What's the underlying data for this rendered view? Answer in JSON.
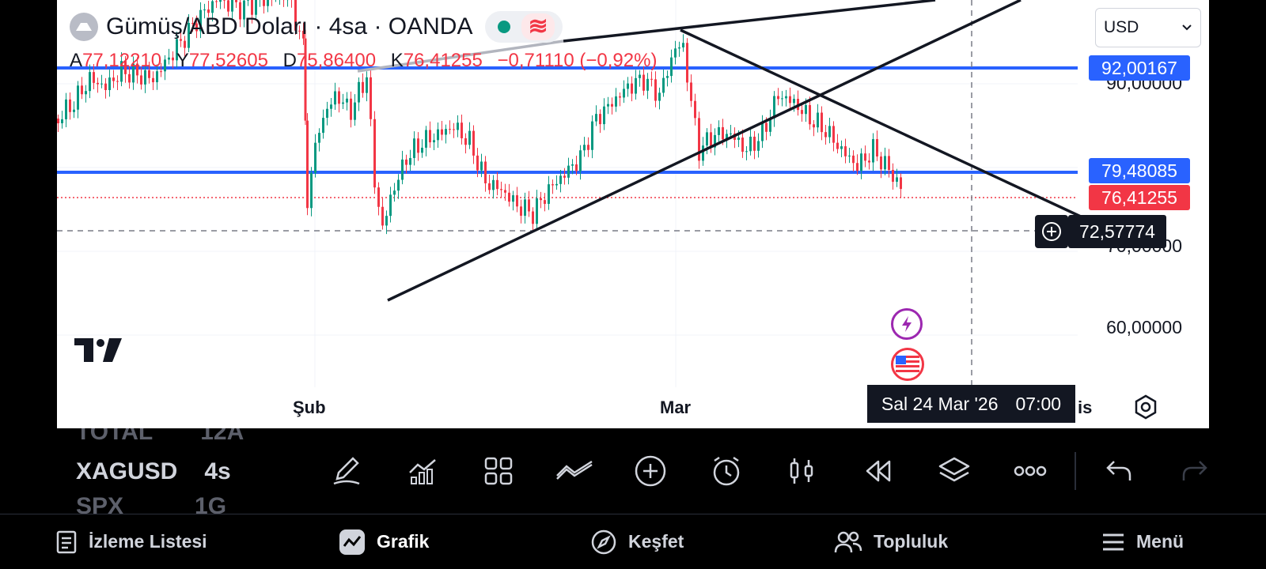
{
  "header": {
    "title": "Gümüş/ABD Doları · 4sa · OANDA",
    "status_glyph": "≋",
    "ohlc": {
      "open_label": "A",
      "open": "77,12210",
      "high_label": "Y",
      "high": "77,52605",
      "low_label": "D",
      "low": "75,86400",
      "close_label": "K",
      "close": "76,41255",
      "change": "−0,71110 (−0,92%)"
    }
  },
  "currency_select": {
    "value": "USD"
  },
  "price_scale": {
    "labels": [
      "90,00000",
      "70,00000",
      "60,00000"
    ],
    "line1": "92,00167",
    "line2": "79,48085",
    "last": "76,41255",
    "crosshair": "72,57774"
  },
  "time_axis": {
    "labels": [
      "Şub",
      "Mar"
    ],
    "partial": "is",
    "crosshair_date": "Sal 24 Mar '26",
    "crosshair_time": "07:00"
  },
  "watchlist_peek": [
    {
      "symbol": "TOTAL",
      "interval": "12A"
    },
    {
      "symbol": "XAGUSD",
      "interval": "4s"
    },
    {
      "symbol": "SPX",
      "interval": "1G"
    }
  ],
  "toolbar_icons": [
    "pencil-icon",
    "indicators-icon",
    "grid-icon",
    "trend-icon",
    "plus-circle-icon",
    "alarm-icon",
    "candles-icon",
    "replay-icon",
    "layers-icon",
    "more-icon",
    "undo-icon",
    "redo-icon"
  ],
  "bottom_nav": [
    {
      "label": "İzleme Listesi",
      "icon": "watchlist-icon"
    },
    {
      "label": "Grafik",
      "icon": "chart-icon"
    },
    {
      "label": "Keşfet",
      "icon": "compass-icon"
    },
    {
      "label": "Topluluk",
      "icon": "community-icon"
    },
    {
      "label": "Menü",
      "icon": "menu-icon"
    }
  ],
  "colors": {
    "up": "#089981",
    "down": "#f23645",
    "hline": "#2962ff",
    "accent_purple": "#9c27b0"
  }
}
